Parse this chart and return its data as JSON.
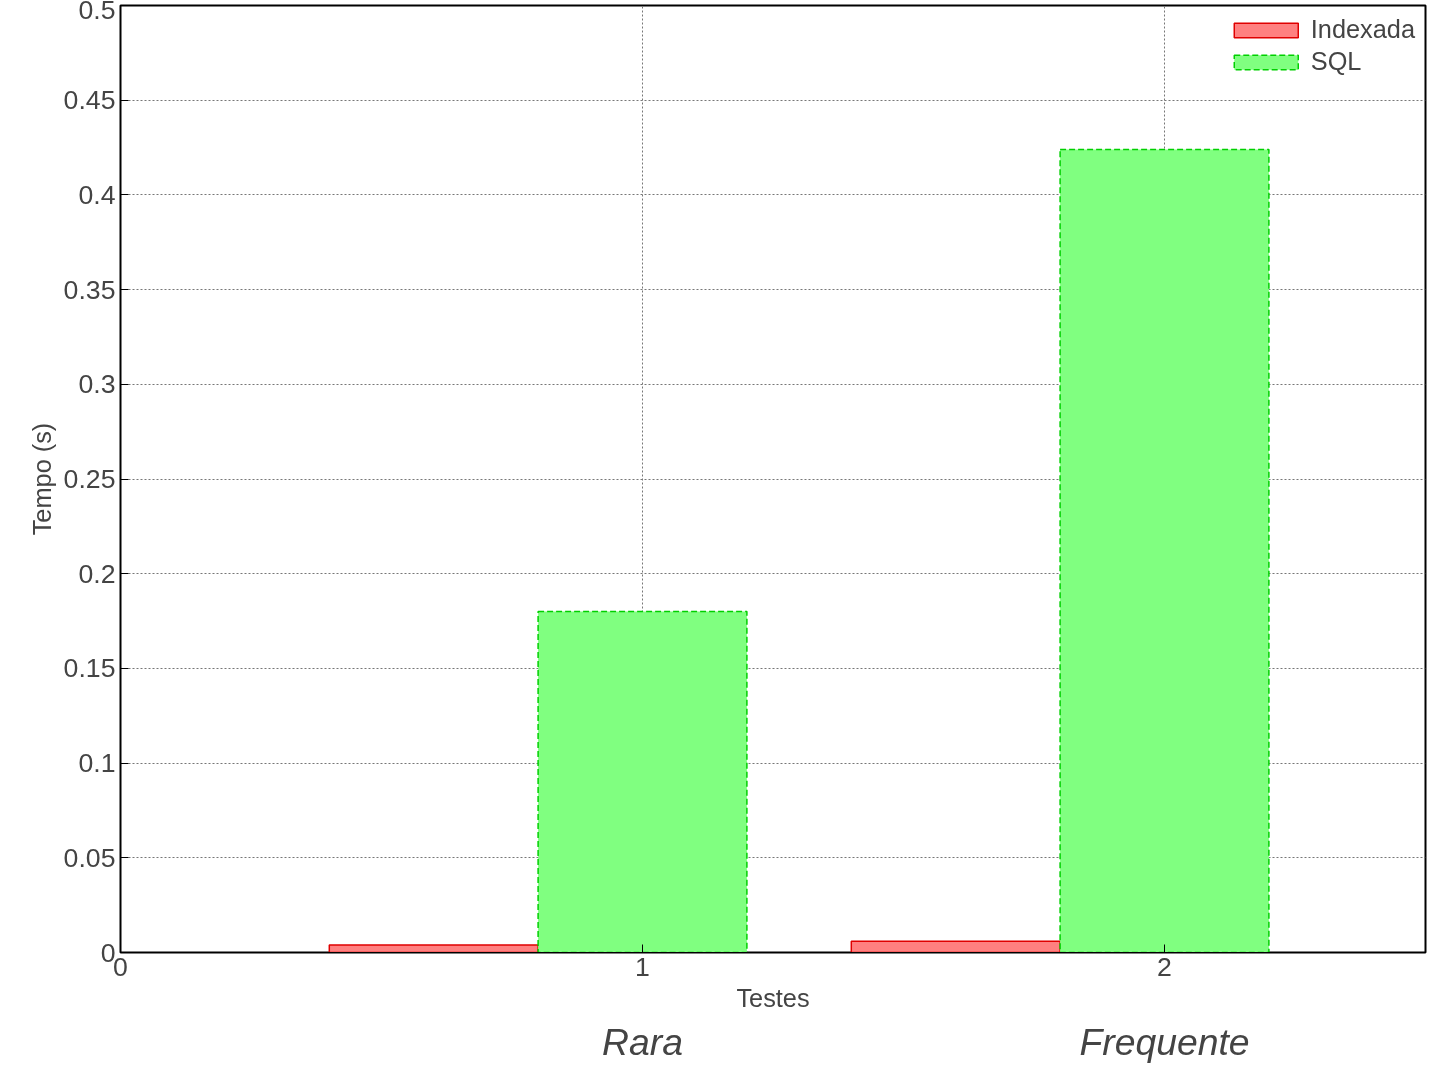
{
  "chart_data": {
    "type": "bar",
    "xlabel": "Testes",
    "ylabel": "Tempo (s)",
    "series": [
      {
        "name": "Indexada",
        "color": "#ff8080",
        "x": [
          0.6,
          1.6
        ],
        "values": [
          0.004,
          0.006
        ],
        "line_style": "solid"
      },
      {
        "name": "SQL",
        "color": "#80ff80",
        "x": [
          1.0,
          2.0
        ],
        "values": [
          0.18,
          0.424
        ],
        "line_style": "dashed"
      }
    ],
    "xlim": [
      0,
      2.5
    ],
    "xticks": [
      0,
      1,
      2
    ],
    "ylim": [
      0,
      0.5
    ],
    "yticks": [
      0,
      0.05,
      0.1,
      0.15,
      0.2,
      0.25,
      0.3,
      0.35,
      0.4,
      0.45,
      0.5
    ],
    "annotations": [
      "Rara",
      "Frequente"
    ],
    "grid": true,
    "legend": "top right"
  }
}
